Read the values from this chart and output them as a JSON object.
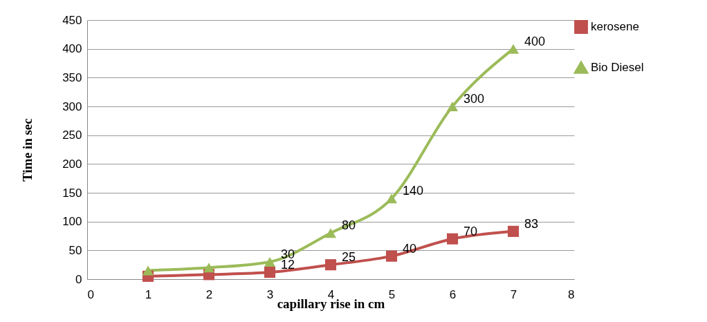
{
  "chart_data": {
    "type": "line",
    "xlabel": "capillary rise in cm",
    "ylabel": "Time in sec",
    "x": [
      1,
      2,
      3,
      4,
      5,
      6,
      7
    ],
    "xlim": [
      0,
      8
    ],
    "xticks": [
      0,
      1,
      2,
      3,
      4,
      5,
      6,
      7,
      8
    ],
    "ylim": [
      0,
      450
    ],
    "yticks": [
      0,
      50,
      100,
      150,
      200,
      250,
      300,
      350,
      400,
      450
    ],
    "grid": "y",
    "legend": "right",
    "series": [
      {
        "name": "kerosene",
        "color": "#c0504d",
        "marker": "square",
        "values": [
          5,
          8,
          12,
          25,
          40,
          70,
          83
        ],
        "value_labels": [
          null,
          null,
          "12",
          "25",
          "40",
          "70",
          "83"
        ]
      },
      {
        "name": "Bio Diesel",
        "color": "#9bbb59",
        "marker": "triangle",
        "values": [
          15,
          20,
          30,
          80,
          140,
          300,
          400
        ],
        "value_labels": [
          null,
          null,
          "30",
          "80",
          "140",
          "300",
          "400"
        ]
      }
    ]
  }
}
